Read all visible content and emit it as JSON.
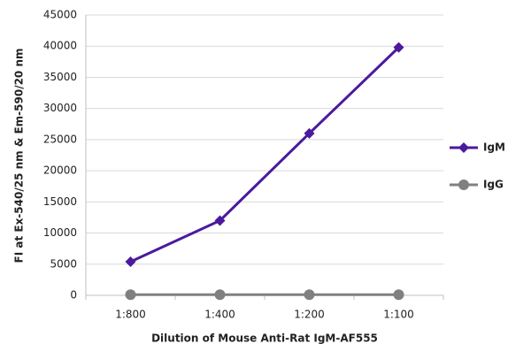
{
  "chart_data": {
    "type": "line",
    "x_label": "Dilution of Mouse Anti-Rat IgM-AF555",
    "y_label": "FI at Ex-540/25 nm & Em-590/20 nm",
    "categories": [
      "1:800",
      "1:400",
      "1:200",
      "1:100"
    ],
    "series": [
      {
        "name": "IgM",
        "color": "#4b1a9e",
        "marker": "diamond",
        "values": [
          5400,
          12000,
          26000,
          39800
        ]
      },
      {
        "name": "IgG",
        "color": "#808080",
        "marker": "circle",
        "values": [
          100,
          100,
          100,
          100
        ]
      }
    ],
    "ylim": [
      0,
      45000
    ],
    "yticks": [
      0,
      5000,
      10000,
      15000,
      20000,
      25000,
      30000,
      35000,
      40000,
      45000
    ],
    "grid": true,
    "legend": "right"
  }
}
